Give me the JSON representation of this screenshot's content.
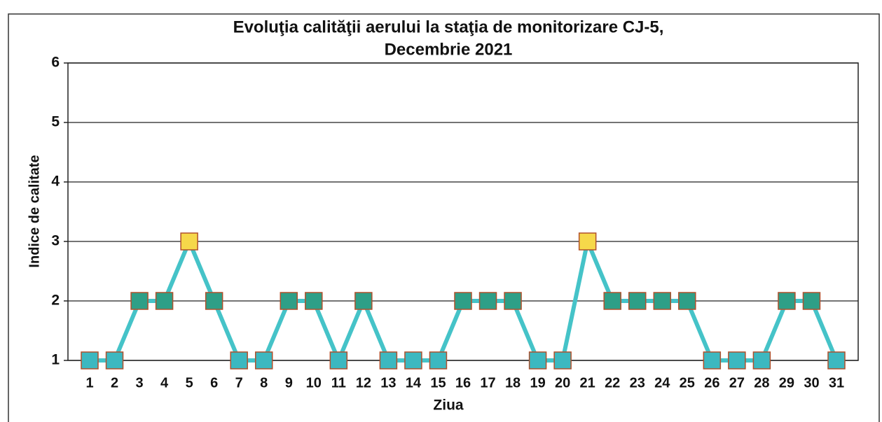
{
  "chart_data": {
    "type": "line",
    "title": [
      "Evoluţia calităţii aerului la staţia de monitorizare CJ-5,",
      "Decembrie  2021"
    ],
    "x_label": "Ziua",
    "y_label": "Indice de calitate",
    "categories": [
      "1",
      "2",
      "3",
      "4",
      "5",
      "6",
      "7",
      "8",
      "9",
      "10",
      "11",
      "12",
      "13",
      "14",
      "15",
      "16",
      "17",
      "18",
      "19",
      "20",
      "21",
      "22",
      "23",
      "24",
      "25",
      "26",
      "27",
      "28",
      "29",
      "30",
      "31"
    ],
    "series": [
      {
        "name": "Indice de calitate",
        "color": "#45c3c8",
        "values": [
          1,
          1,
          2,
          2,
          3,
          2,
          1,
          1,
          2,
          2,
          1,
          2,
          1,
          1,
          1,
          2,
          2,
          2,
          1,
          1,
          3,
          2,
          2,
          2,
          2,
          1,
          1,
          1,
          2,
          2,
          1
        ],
        "marker_colors": [
          "#3cb8c0",
          "#3cb8c0",
          "#2e9f87",
          "#2e9f87",
          "#f6d84a",
          "#2e9f87",
          "#3cb8c0",
          "#3cb8c0",
          "#2e9f87",
          "#2e9f87",
          "#3cb8c0",
          "#2e9f87",
          "#3cb8c0",
          "#3cb8c0",
          "#3cb8c0",
          "#2e9f87",
          "#2e9f87",
          "#2e9f87",
          "#3cb8c0",
          "#3cb8c0",
          "#f6d84a",
          "#2e9f87",
          "#2e9f87",
          "#2e9f87",
          "#2e9f87",
          "#3cb8c0",
          "#3cb8c0",
          "#3cb8c0",
          "#2e9f87",
          "#2e9f87",
          "#3cb8c0"
        ]
      }
    ],
    "ylim": [
      1,
      6
    ],
    "yticks": [
      1,
      2,
      3,
      4,
      5,
      6
    ],
    "grid": true
  }
}
